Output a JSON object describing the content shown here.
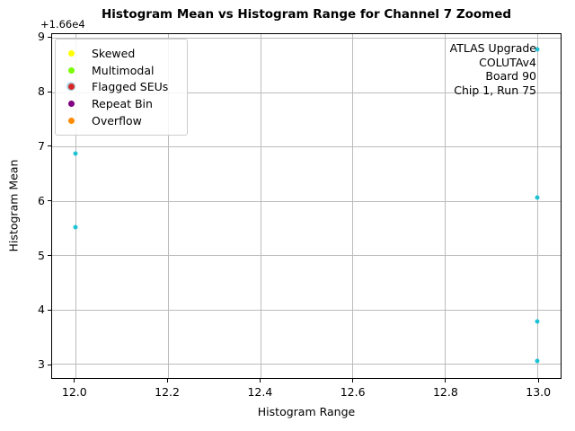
{
  "figure": {
    "title": "Histogram Mean vs Histogram Range for Channel 7 Zoomed"
  },
  "annotation": {
    "lines": [
      "ATLAS Upgrade",
      "COLUTAv4",
      "Board 90",
      "Chip 1, Run 75"
    ]
  },
  "legend": {
    "position": "upper left",
    "items": [
      {
        "label": "Skewed",
        "color": "#ffff00"
      },
      {
        "label": "Multimodal",
        "color": "#7cfc00"
      },
      {
        "label": "Flagged SEUs",
        "color": "#d62728",
        "halo_color": "#add8e6"
      },
      {
        "label": "Repeat Bin",
        "color": "#800080"
      },
      {
        "label": "Overflow",
        "color": "#ff8c00"
      }
    ]
  },
  "chart_data": {
    "type": "scatter",
    "title": "Histogram Mean vs Histogram Range for Channel 7 Zoomed",
    "xlabel": "Histogram Range",
    "ylabel": "Histogram Mean",
    "grid": true,
    "xlim": [
      11.95,
      13.05
    ],
    "ylim": [
      16602.74,
      16609.07
    ],
    "y_offset_base": 16600,
    "y_offset_label": "+1.66e4",
    "x_ticks": {
      "values": [
        12.0,
        12.2,
        12.4,
        12.6,
        12.8,
        13.0
      ],
      "labels": [
        "12.0",
        "12.2",
        "12.4",
        "12.6",
        "12.8",
        "13.0"
      ]
    },
    "y_ticks": {
      "values": [
        16603,
        16604,
        16605,
        16606,
        16607,
        16608,
        16609
      ],
      "labels": [
        "3",
        "4",
        "5",
        "6",
        "7",
        "8",
        "9"
      ]
    },
    "series": [
      {
        "name": "channel-7-points",
        "color": "#1fc3d5",
        "marker": "circle",
        "points": [
          [
            12.0,
            16606.87
          ],
          [
            12.0,
            16605.51
          ],
          [
            13.0,
            16608.79
          ],
          [
            13.0,
            16606.06
          ],
          [
            13.0,
            16603.78
          ],
          [
            13.0,
            16603.05
          ]
        ]
      }
    ]
  }
}
